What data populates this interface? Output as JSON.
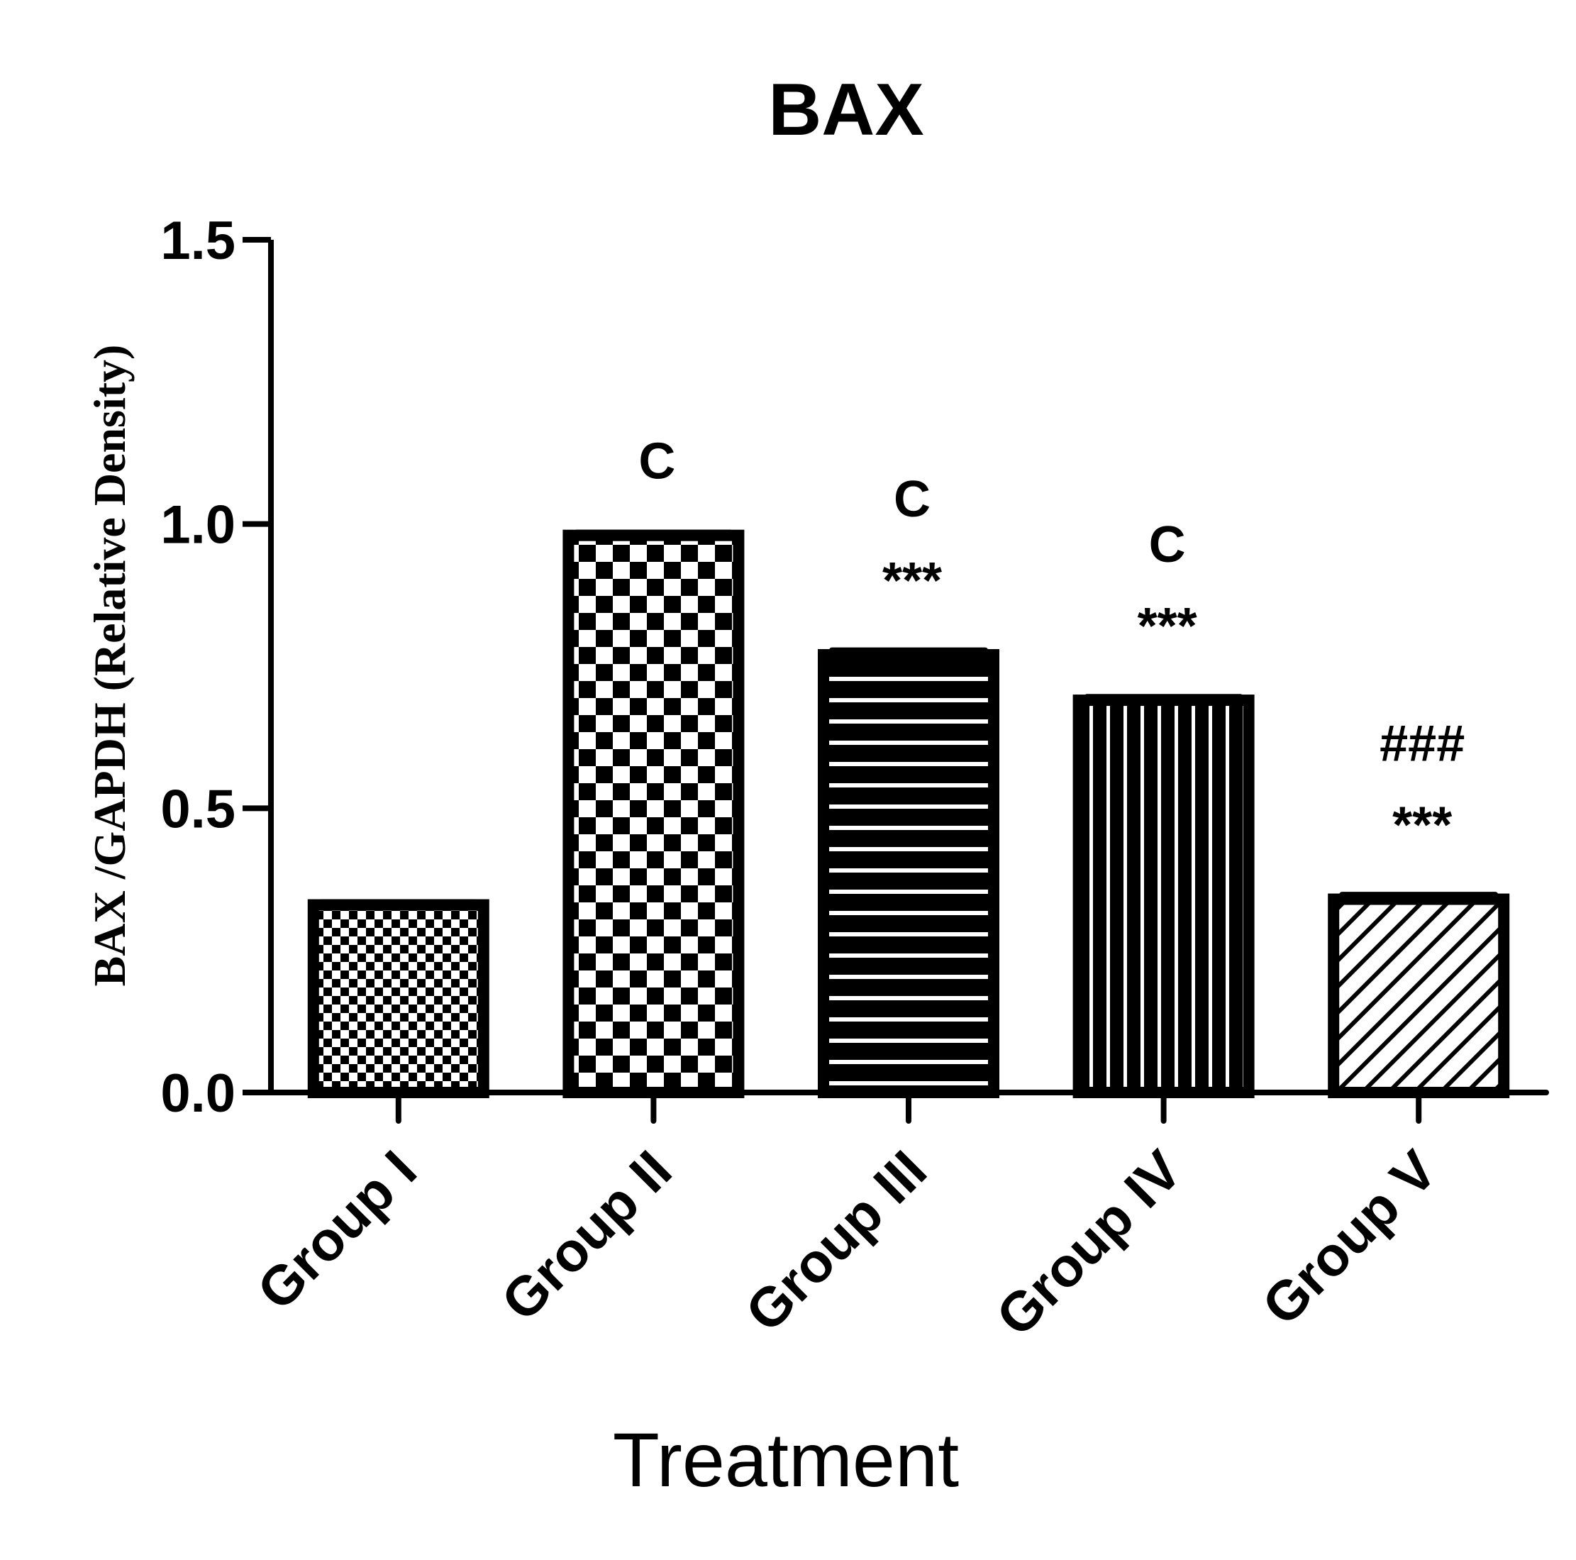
{
  "chart_data": {
    "type": "bar",
    "title": "BAX",
    "xlabel": "Treatment",
    "ylabel": "BAX /GAPDH (Relative Density)",
    "ylim": [
      0,
      1.5
    ],
    "yticks": [
      "0.0",
      "0.5",
      "1.0",
      "1.5"
    ],
    "categories": [
      "Group I",
      "Group II",
      "Group III",
      "Group IV",
      "Group V"
    ],
    "values": [
      0.33,
      0.98,
      0.77,
      0.69,
      0.34
    ],
    "error": [
      0.005,
      0.005,
      0.008,
      0.006,
      0.008
    ],
    "patterns": [
      "fine-checker",
      "checker",
      "horizontal-lines",
      "vertical-lines",
      "diagonal-lines"
    ],
    "annotations": [
      [],
      [
        "C"
      ],
      [
        "C",
        "***"
      ],
      [
        "C",
        "***"
      ],
      [
        "###",
        "***"
      ]
    ],
    "grid": false,
    "legend": "none",
    "colors": {
      "ink": "#000000",
      "background": "#ffffff"
    }
  }
}
